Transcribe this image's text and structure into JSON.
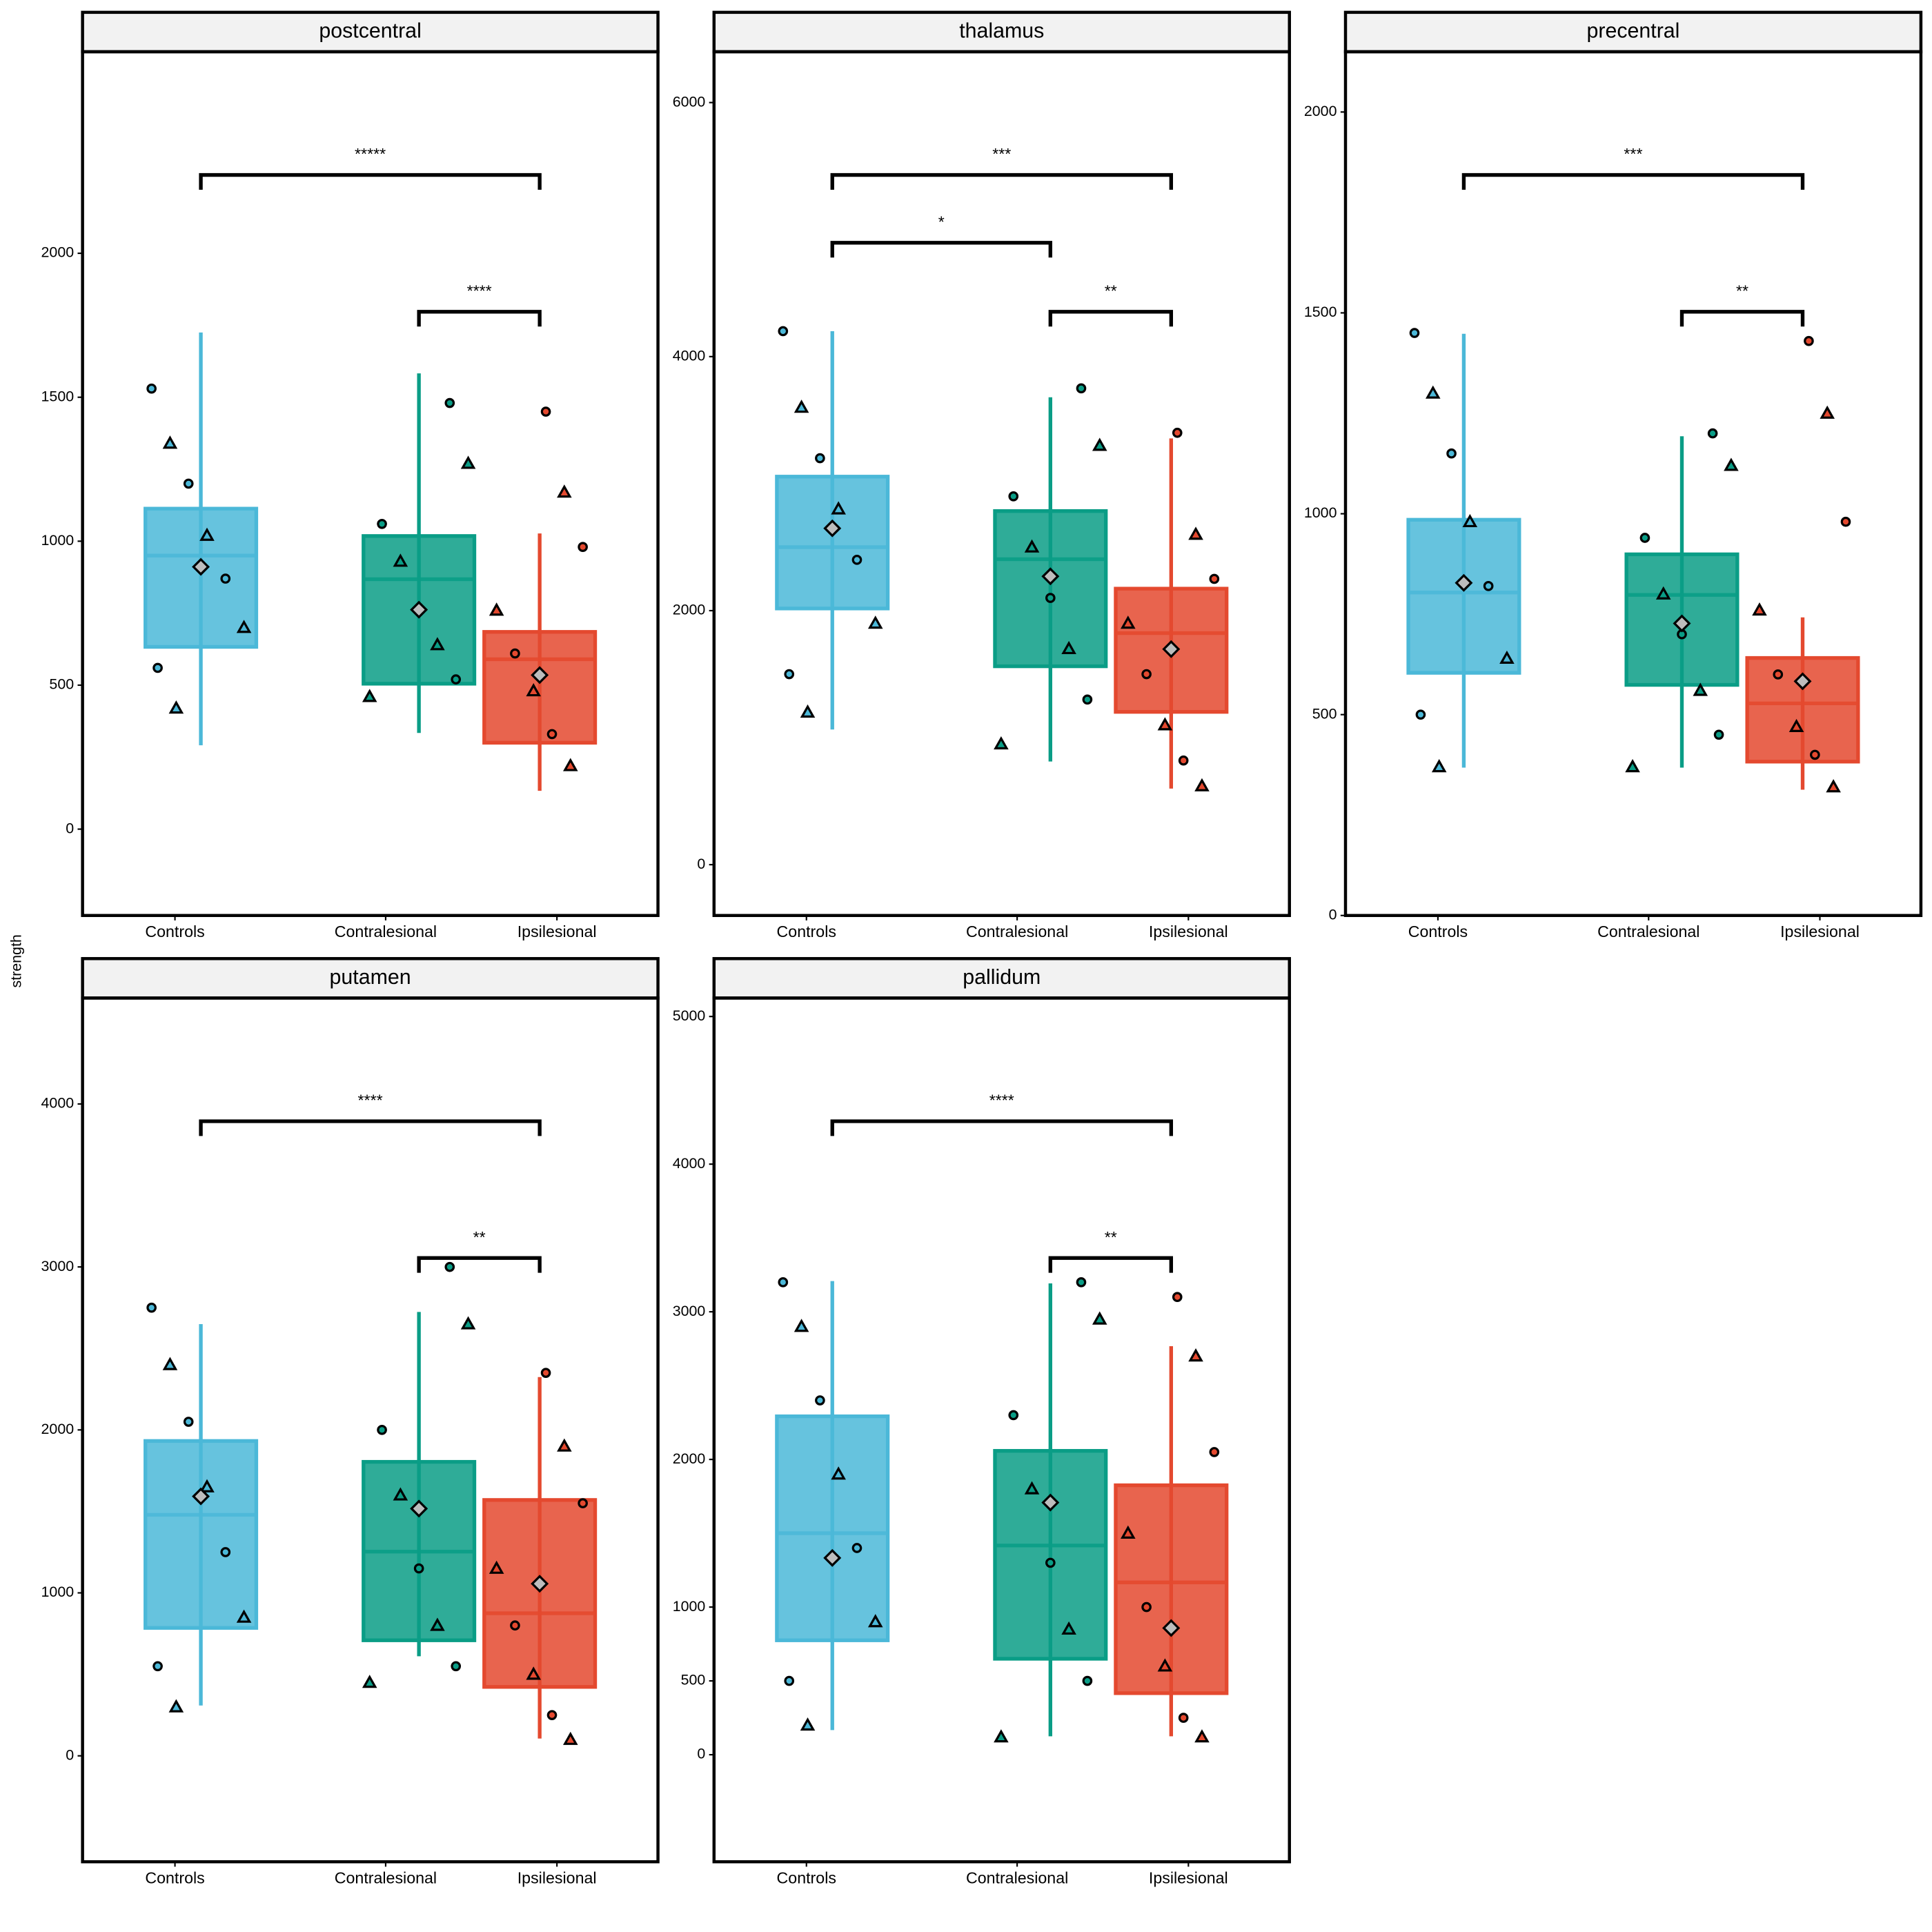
{
  "y_label": "strength",
  "chart_data": [
    {
      "type": "box",
      "title": "postcentral",
      "categories": [
        "Controls",
        "Contralesional",
        "Ipsilesional"
      ],
      "colors": [
        "#4bb8d8",
        "#0a9d86",
        "#e4492f"
      ],
      "ylim": [
        -300,
        2700
      ],
      "yticks": [
        0,
        500,
        1000,
        1500,
        2000
      ],
      "boxes": [
        {
          "whislo": 291,
          "q1": 633,
          "med": 950,
          "q3": 1113,
          "whishi": 1725,
          "mean": 911
        },
        {
          "whislo": 334,
          "q1": 505,
          "med": 868,
          "q3": 1018,
          "whishi": 1583,
          "mean": 762
        },
        {
          "whislo": 133,
          "q1": 300,
          "med": 590,
          "q3": 685,
          "whishi": 1027,
          "mean": 535
        }
      ],
      "points": [
        [
          1530,
          1340,
          1200,
          1020,
          870,
          700,
          560,
          420
        ],
        [
          1480,
          1270,
          1060,
          930,
          760,
          640,
          520,
          460
        ],
        [
          1450,
          1170,
          980,
          760,
          610,
          480,
          330,
          220
        ]
      ],
      "comparisons": [
        {
          "groups": [
            "Controls",
            "Ipsilesional"
          ],
          "label": "*****"
        },
        {
          "groups": [
            "Contralesional",
            "Ipsilesional"
          ],
          "label": "****"
        }
      ]
    },
    {
      "type": "box",
      "title": "thalamus",
      "categories": [
        "Controls",
        "Contralesional",
        "Ipsilesional"
      ],
      "colors": [
        "#4bb8d8",
        "#0a9d86",
        "#e4492f"
      ],
      "ylim": [
        -400,
        6400
      ],
      "yticks": [
        0,
        2000,
        4000,
        6000
      ],
      "boxes": [
        {
          "whislo": 1064,
          "q1": 2017,
          "med": 2500,
          "q3": 3055,
          "whishi": 4200,
          "mean": 2648
        },
        {
          "whislo": 812,
          "q1": 1562,
          "med": 2405,
          "q3": 2784,
          "whishi": 3680,
          "mean": 2270
        },
        {
          "whislo": 599,
          "q1": 1203,
          "med": 1823,
          "q3": 2173,
          "whishi": 3356,
          "mean": 1697
        }
      ],
      "points": [
        [
          4200,
          3600,
          3200,
          2800,
          2400,
          1900,
          1500,
          1200
        ],
        [
          3750,
          3300,
          2900,
          2500,
          2100,
          1700,
          1300,
          950
        ],
        [
          3400,
          2600,
          2250,
          1900,
          1500,
          1100,
          820,
          620
        ]
      ],
      "comparisons": [
        {
          "groups": [
            "Controls",
            "Ipsilesional"
          ],
          "label": "***"
        },
        {
          "groups": [
            "Controls",
            "Contralesional"
          ],
          "label": "*"
        },
        {
          "groups": [
            "Contralesional",
            "Ipsilesional"
          ],
          "label": "**"
        }
      ]
    },
    {
      "type": "box",
      "title": "precentral",
      "categories": [
        "Controls",
        "Contralesional",
        "Ipsilesional"
      ],
      "colors": [
        "#4bb8d8",
        "#0a9d86",
        "#e4492f"
      ],
      "ylim": [
        0,
        2150
      ],
      "yticks": [
        0,
        500,
        1000,
        1500,
        2000
      ],
      "boxes": [
        {
          "whislo": 368,
          "q1": 604,
          "med": 804,
          "q3": 985,
          "whishi": 1448,
          "mean": 828
        },
        {
          "whislo": 368,
          "q1": 574,
          "med": 798,
          "q3": 899,
          "whishi": 1193,
          "mean": 727
        },
        {
          "whislo": 313,
          "q1": 383,
          "med": 528,
          "q3": 641,
          "whishi": 742,
          "mean": 583
        }
      ],
      "points": [
        [
          1450,
          1300,
          1150,
          980,
          820,
          640,
          500,
          370
        ],
        [
          1200,
          1120,
          940,
          800,
          700,
          560,
          450,
          370
        ],
        [
          1430,
          1250,
          980,
          760,
          600,
          470,
          400,
          320
        ]
      ],
      "comparisons": [
        {
          "groups": [
            "Controls",
            "Ipsilesional"
          ],
          "label": "***"
        },
        {
          "groups": [
            "Contralesional",
            "Ipsilesional"
          ],
          "label": "**"
        }
      ]
    },
    {
      "type": "box",
      "title": "putamen",
      "categories": [
        "Controls",
        "Contralesional",
        "Ipsilesional"
      ],
      "colors": [
        "#4bb8d8",
        "#0a9d86",
        "#e4492f"
      ],
      "ylim": [
        -650,
        4650
      ],
      "yticks": [
        0,
        1000,
        2000,
        3000,
        4000
      ],
      "boxes": [
        {
          "whislo": 309,
          "q1": 785,
          "med": 1479,
          "q3": 1932,
          "whishi": 2649,
          "mean": 1592
        },
        {
          "whislo": 611,
          "q1": 709,
          "med": 1253,
          "q3": 1804,
          "whishi": 2724,
          "mean": 1517
        },
        {
          "whislo": 106,
          "q1": 423,
          "med": 875,
          "q3": 1570,
          "whishi": 2324,
          "mean": 1056
        }
      ],
      "points": [
        [
          2750,
          2400,
          2050,
          1650,
          1250,
          850,
          550,
          300
        ],
        [
          3000,
          2650,
          2000,
          1600,
          1150,
          800,
          550,
          450
        ],
        [
          2350,
          1900,
          1550,
          1150,
          800,
          500,
          250,
          100
        ]
      ],
      "comparisons": [
        {
          "groups": [
            "Controls",
            "Ipsilesional"
          ],
          "label": "****"
        },
        {
          "groups": [
            "Contralesional",
            "Ipsilesional"
          ],
          "label": "**"
        }
      ]
    },
    {
      "type": "box",
      "title": "pallidum",
      "categories": [
        "Controls",
        "Contralesional",
        "Ipsilesional"
      ],
      "colors": [
        "#4bb8d8",
        "#0a9d86",
        "#e4492f"
      ],
      "ylim": [
        -725,
        5125
      ],
      "yticks": [
        0,
        500,
        1000,
        2000,
        3000,
        4000,
        5000
      ],
      "boxes": [
        {
          "whislo": 167,
          "q1": 775,
          "med": 1500,
          "q3": 2292,
          "whishi": 3208,
          "mean": 1333
        },
        {
          "whislo": 125,
          "q1": 650,
          "med": 1417,
          "q3": 2058,
          "whishi": 3192,
          "mean": 1708
        },
        {
          "whislo": 125,
          "q1": 417,
          "med": 1167,
          "q3": 1825,
          "whishi": 2767,
          "mean": 858
        }
      ],
      "points": [
        [
          3200,
          2900,
          2400,
          1900,
          1400,
          900,
          500,
          200
        ],
        [
          3200,
          2950,
          2300,
          1800,
          1300,
          850,
          500,
          120
        ],
        [
          3100,
          2700,
          2050,
          1500,
          1000,
          600,
          250,
          120
        ]
      ],
      "comparisons": [
        {
          "groups": [
            "Controls",
            "Ipsilesional"
          ],
          "label": "****"
        },
        {
          "groups": [
            "Contralesional",
            "Ipsilesional"
          ],
          "label": "**"
        }
      ]
    }
  ]
}
